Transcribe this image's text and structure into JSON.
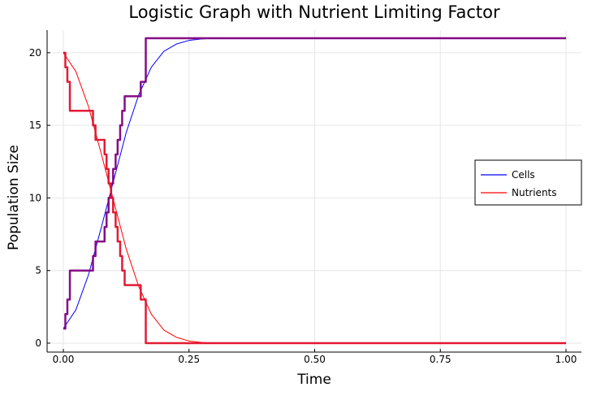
{
  "chart_data": {
    "type": "line",
    "title": "Logistic Graph with Nutrient Limiting Factor",
    "xlabel": "Time",
    "ylabel": "Population Size",
    "xlim": [
      0,
      1
    ],
    "ylim": [
      0,
      21
    ],
    "xticks": [
      "0.00",
      "0.25",
      "0.50",
      "0.75",
      "1.00"
    ],
    "xtick_values": [
      0,
      0.25,
      0.5,
      0.75,
      1.0
    ],
    "yticks": [
      "0",
      "5",
      "10",
      "15",
      "20"
    ],
    "ytick_values": [
      0,
      5,
      10,
      15,
      20
    ],
    "grid": true,
    "legend_position": "right",
    "series": [
      {
        "name": "Cells",
        "style": "smooth-line",
        "color": "#0000ff",
        "x": [
          0,
          0.025,
          0.05,
          0.075,
          0.1,
          0.125,
          0.15,
          0.175,
          0.2,
          0.225,
          0.25,
          0.275,
          0.3,
          0.4,
          0.5,
          0.6,
          0.7,
          0.8,
          0.9,
          1.0
        ],
        "y": [
          1,
          2.3,
          4.7,
          7.9,
          11.2,
          14.5,
          17.1,
          19.0,
          20.1,
          20.6,
          20.85,
          20.95,
          21,
          21,
          21,
          21,
          21,
          21,
          21,
          21
        ]
      },
      {
        "name": "Nutrients",
        "style": "smooth-line",
        "color": "#ff0000",
        "x": [
          0,
          0.025,
          0.05,
          0.075,
          0.1,
          0.125,
          0.15,
          0.175,
          0.2,
          0.225,
          0.25,
          0.275,
          0.3,
          0.4,
          0.5,
          0.6,
          0.7,
          0.8,
          0.9,
          1.0
        ],
        "y": [
          20,
          18.7,
          16.3,
          13.1,
          9.8,
          6.5,
          3.9,
          2.0,
          0.9,
          0.4,
          0.15,
          0.05,
          0,
          0,
          0,
          0,
          0,
          0,
          0,
          0
        ]
      },
      {
        "name": "",
        "style": "step",
        "color": "#800080",
        "x": [
          0,
          0.004,
          0.008,
          0.013,
          0.059,
          0.064,
          0.082,
          0.086,
          0.09,
          0.095,
          0.099,
          0.104,
          0.108,
          0.113,
          0.117,
          0.122,
          0.127,
          0.131,
          0.136,
          0.154,
          0.159,
          0.164,
          0.168,
          0.172,
          1.0
        ],
        "y": [
          1,
          2,
          3,
          5,
          6,
          7,
          8,
          9,
          10,
          11,
          12,
          13,
          14,
          15,
          16,
          17,
          17,
          17,
          17,
          18,
          18,
          21,
          21,
          21,
          21
        ]
      },
      {
        "name": "",
        "style": "step",
        "color": "#e0102a",
        "x": [
          0,
          0.004,
          0.008,
          0.013,
          0.059,
          0.064,
          0.082,
          0.086,
          0.09,
          0.095,
          0.099,
          0.104,
          0.108,
          0.113,
          0.117,
          0.122,
          0.127,
          0.131,
          0.136,
          0.154,
          0.159,
          0.164,
          0.168,
          0.172,
          1.0
        ],
        "y": [
          20,
          19,
          18,
          16,
          15,
          14,
          13,
          12,
          11,
          10,
          9,
          8,
          7,
          6,
          5,
          4,
          4,
          4,
          4,
          3,
          3,
          0,
          0,
          0,
          0
        ]
      }
    ]
  }
}
